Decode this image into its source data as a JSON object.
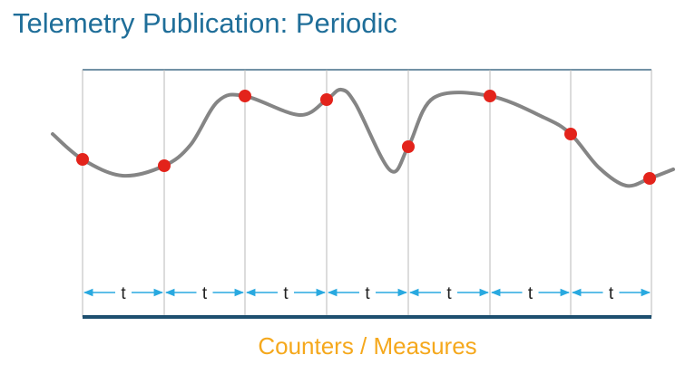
{
  "title": "Telemetry Publication: Periodic",
  "intervals": [
    "t",
    "t",
    "t",
    "t",
    "t",
    "t",
    "t"
  ],
  "footer": "Counters / Measures"
}
